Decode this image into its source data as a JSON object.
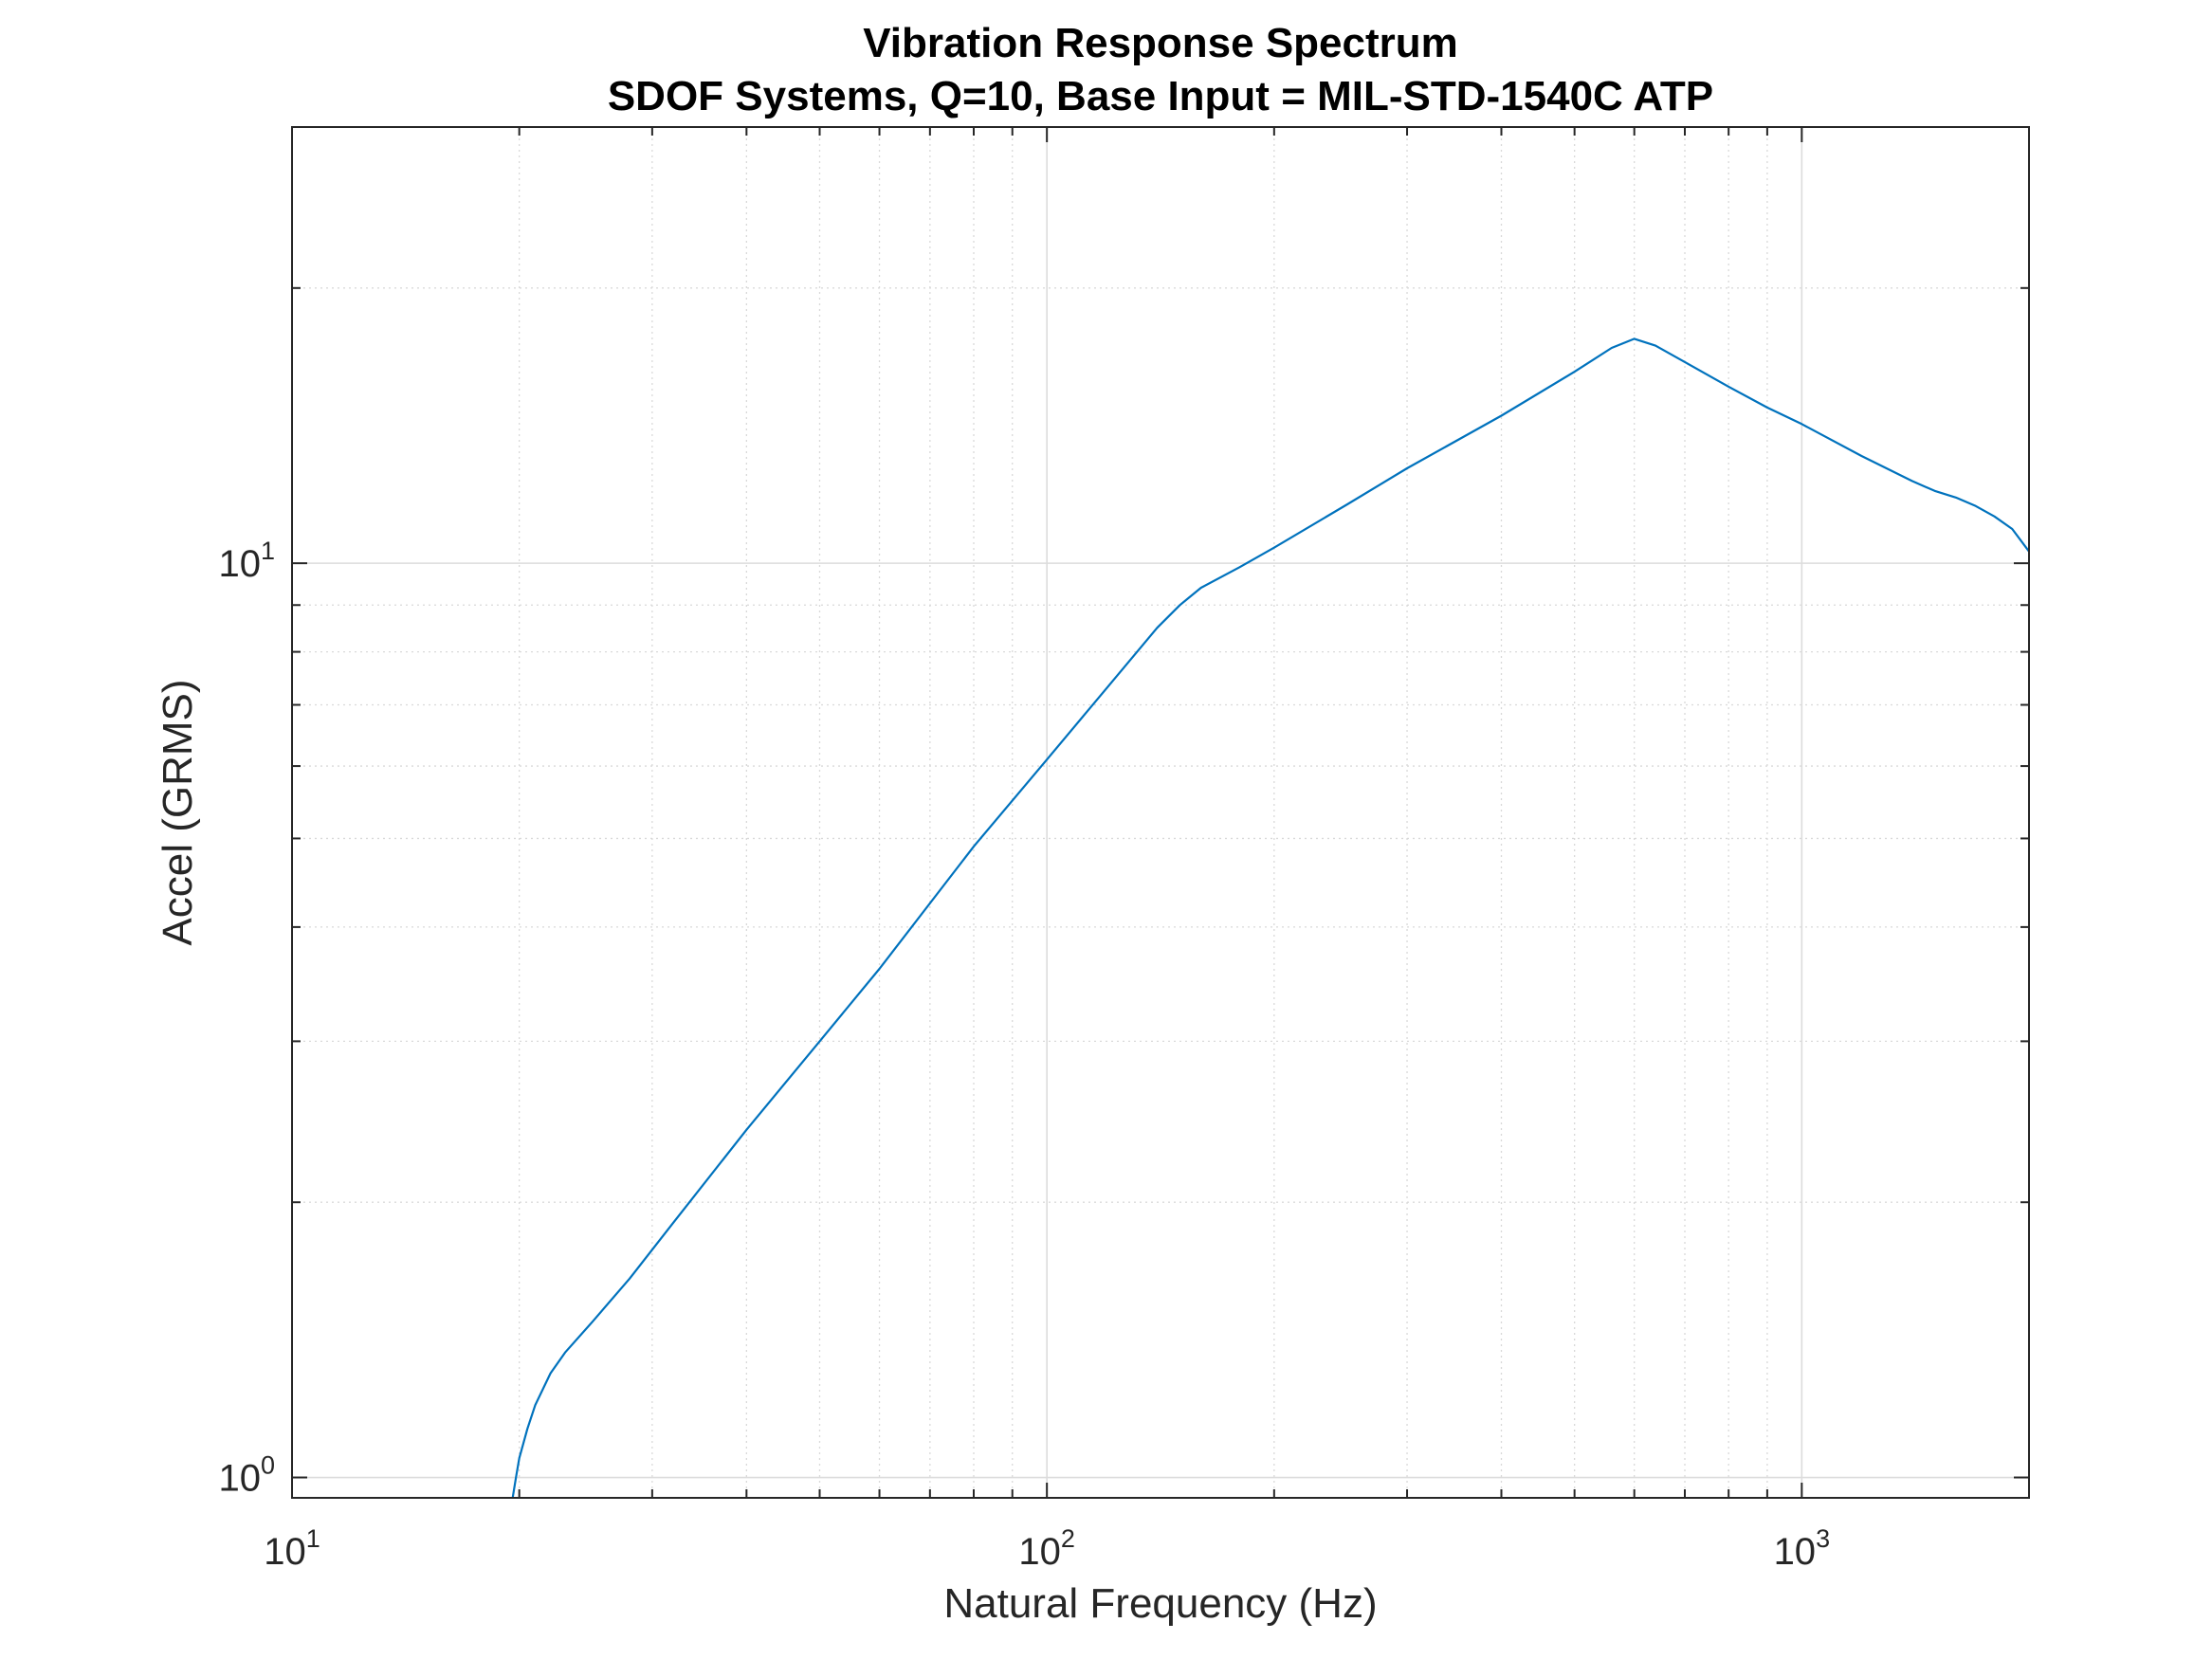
{
  "chart_data": {
    "type": "line",
    "title": "Vibration Response Spectrum",
    "subtitle": "SDOF Systems, Q=10, Base Input = MIL-STD-1540C ATP",
    "xlabel": "Natural Frequency (Hz)",
    "ylabel": "Accel (GRMS)",
    "xscale": "log",
    "yscale": "log",
    "xlim": [
      10,
      2000
    ],
    "ylim": [
      0.95,
      30
    ],
    "grid": true,
    "minor_grid": true,
    "legend": "none",
    "line_color": "#0072BD",
    "x_ticks": [
      {
        "base": "10",
        "exp": "1",
        "value": 10
      },
      {
        "base": "10",
        "exp": "2",
        "value": 100
      },
      {
        "base": "10",
        "exp": "3",
        "value": 1000
      }
    ],
    "y_ticks": [
      {
        "base": "10",
        "exp": "0",
        "value": 1
      },
      {
        "base": "10",
        "exp": "1",
        "value": 10
      }
    ],
    "series": [
      {
        "x": [
          19.6,
          19.8,
          20,
          20.5,
          21,
          22,
          23,
          25,
          28,
          32,
          40,
          50,
          60,
          80,
          100,
          120,
          140,
          150,
          160,
          180,
          200,
          250,
          300,
          400,
          500,
          560,
          600,
          640,
          700,
          800,
          900,
          1000,
          1200,
          1400,
          1500,
          1600,
          1700,
          1800,
          1900,
          2000
        ],
        "y": [
          0.95,
          1.0,
          1.05,
          1.13,
          1.2,
          1.3,
          1.37,
          1.48,
          1.65,
          1.9,
          2.4,
          3.0,
          3.6,
          4.9,
          6.1,
          7.3,
          8.5,
          9.0,
          9.4,
          9.9,
          10.4,
          11.6,
          12.7,
          14.5,
          16.2,
          17.2,
          17.6,
          17.3,
          16.6,
          15.6,
          14.8,
          14.2,
          13.1,
          12.3,
          12.0,
          11.8,
          11.55,
          11.25,
          10.9,
          10.3
        ]
      }
    ]
  }
}
